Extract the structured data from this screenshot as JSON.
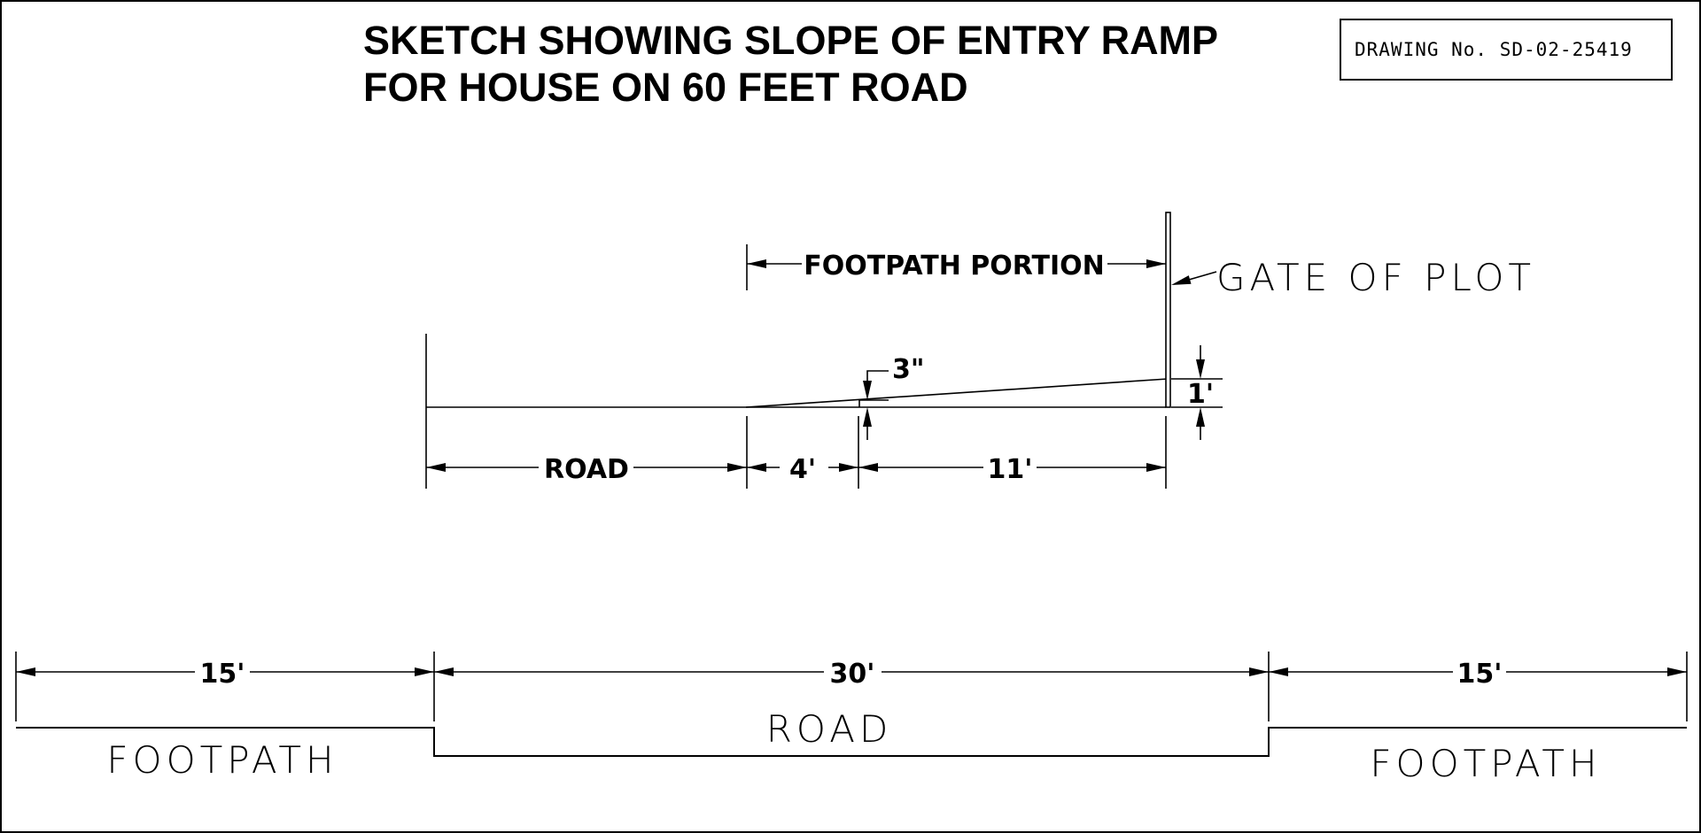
{
  "title_line_1": "SKETCH SHOWING SLOPE OF ENTRY RAMP",
  "title_line_2": "FOR HOUSE ON 60 FEET ROAD",
  "drawing_number": "DRAWING No. SD-02-25419",
  "ramp_detail": {
    "footpath_portion_label": "FOOTPATH PORTION",
    "gate_label": "GATE OF PLOT",
    "rise_3_label": "3\"",
    "rise_1_label": "1'",
    "road_label": "ROAD",
    "span_4_label": "4'",
    "span_11_label": "11'"
  },
  "cross_section": {
    "left_width_label": "15'",
    "center_width_label": "30'",
    "right_width_label": "15'",
    "left_footpath_label": "FOOTPATH",
    "road_label": "ROAD",
    "right_footpath_label": "FOOTPATH"
  }
}
